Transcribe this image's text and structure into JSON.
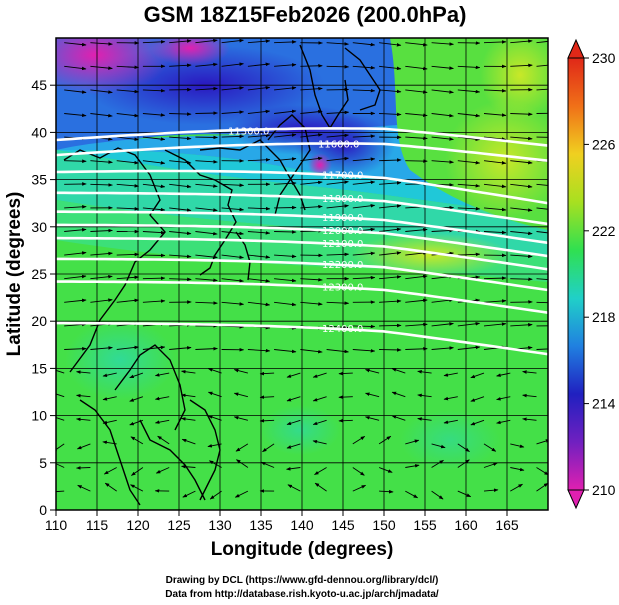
{
  "title": "GSM 18Z15Feb2026 (200.0hPa)",
  "x_axis": {
    "label": "Longitude (degrees)",
    "range": [
      110,
      170
    ],
    "ticks": [
      "110",
      "115",
      "120",
      "125",
      "130",
      "135",
      "140",
      "145",
      "150",
      "155",
      "160",
      "165"
    ]
  },
  "y_axis": {
    "label": "Latitude  (degrees)",
    "range": [
      0,
      50
    ],
    "ticks": [
      "0",
      "5",
      "10",
      "15",
      "20",
      "25",
      "30",
      "35",
      "40",
      "45"
    ]
  },
  "colorbar": {
    "range": [
      210,
      230
    ],
    "ticks": [
      "210",
      "214",
      "218",
      "222",
      "226",
      "230"
    ]
  },
  "contours": [
    {
      "level": "11300.0",
      "lat": 39.2
    },
    {
      "level": "11600.0",
      "lat": 37.6
    },
    {
      "level": "11700.0",
      "lat": 35.8
    },
    {
      "level": "11800.0",
      "lat": 33.6
    },
    {
      "level": "11900.0",
      "lat": 31.6
    },
    {
      "level": "12000.0",
      "lat": 30.2
    },
    {
      "level": "12100.0",
      "lat": 28.8
    },
    {
      "level": "12200.0",
      "lat": 26.6
    },
    {
      "level": "12300.0",
      "lat": 24.2
    },
    {
      "level": "12400.0",
      "lat": 19.8
    }
  ],
  "colors": {
    "cb_stops": [
      "#e020b0",
      "#7020c0",
      "#2020c0",
      "#2080e0",
      "#20d0c8",
      "#30e050",
      "#a8e020",
      "#f0d020",
      "#f07018",
      "#e02818"
    ],
    "contour": "#ffffff"
  },
  "credits": [
    "Drawing by DCL (https://www.gfd-dennou.org/library/dcl/)",
    "Data from http://database.rish.kyoto-u.ac.jp/arch/jmadata/"
  ]
}
